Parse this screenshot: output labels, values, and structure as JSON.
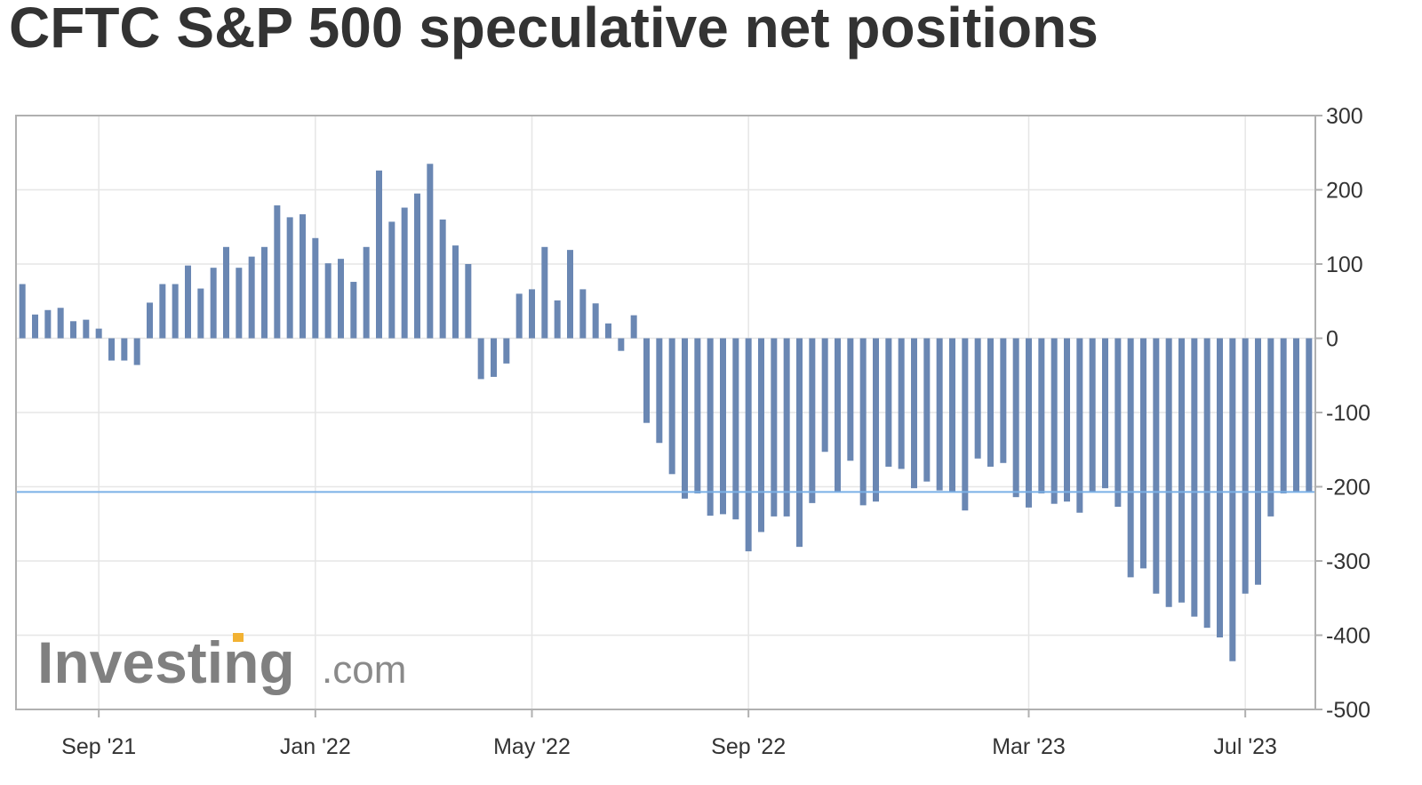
{
  "colors": {
    "bar": "#6a87b3",
    "grid": "#e6e6e6",
    "frame": "#b0b0b0",
    "reference_line": "#7ab0e6",
    "logo_accent": "#f2b233"
  },
  "logo": {
    "brand": "Investing",
    "suffix": ".com"
  },
  "chart_data": {
    "type": "bar",
    "title": "CFTC S&P 500 speculative net positions",
    "xlabel": "",
    "ylabel": "",
    "ylim": [
      -500,
      300
    ],
    "yticks": [
      300,
      200,
      100,
      0,
      -100,
      -200,
      -300,
      -400,
      -500
    ],
    "y_axis_side": "right",
    "grid": true,
    "x_tick_labels": [
      {
        "label": "Sep '21",
        "week_index": 6
      },
      {
        "label": "Jan '22",
        "week_index": 23
      },
      {
        "label": "May '22",
        "week_index": 40
      },
      {
        "label": "Sep '22",
        "week_index": 57
      },
      {
        "label": "Mar '23",
        "week_index": 79
      },
      {
        "label": "Jul '23",
        "week_index": 96
      }
    ],
    "reference_line": -207,
    "values": [
      73,
      32,
      38,
      41,
      23,
      25,
      13,
      -30,
      -30,
      -36,
      48,
      73,
      73,
      98,
      67,
      95,
      123,
      95,
      110,
      123,
      179,
      163,
      167,
      135,
      101,
      107,
      76,
      123,
      226,
      157,
      176,
      195,
      235,
      160,
      125,
      100,
      -55,
      -52,
      -34,
      60,
      66,
      123,
      51,
      119,
      66,
      47,
      20,
      -17,
      31,
      -114,
      -141,
      -183,
      -216,
      -209,
      -239,
      -237,
      -244,
      -287,
      -261,
      -240,
      -240,
      -281,
      -222,
      -153,
      -207,
      -165,
      -225,
      -220,
      -173,
      -176,
      -202,
      -193,
      -205,
      -207,
      -232,
      -162,
      -173,
      -168,
      -214,
      -228,
      -209,
      -223,
      -220,
      -235,
      -206,
      -202,
      -227,
      -322,
      -310,
      -344,
      -362,
      -356,
      -375,
      -390,
      -403,
      -435,
      -344,
      -332,
      -240,
      -209,
      -207,
      -207
    ]
  }
}
